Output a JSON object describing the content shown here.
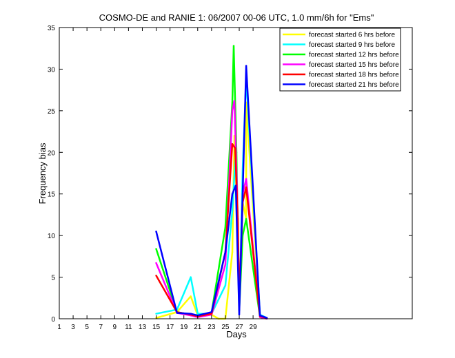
{
  "chart_data": {
    "type": "line",
    "title": "COSMO-DE and RANIE 1: 06/2007 00-06 UTC, 1.0 mm/6h for \"Ems\"",
    "xlabel": "Days",
    "ylabel": "Frequency bias",
    "xlim": [
      1,
      52
    ],
    "ylim": [
      0,
      35
    ],
    "xticks": [
      1,
      3,
      5,
      7,
      9,
      11,
      13,
      15,
      17,
      19,
      21,
      23,
      25,
      27,
      29
    ],
    "yticks": [
      0,
      5,
      10,
      15,
      20,
      25,
      30,
      35
    ],
    "grid": false,
    "legend_position": "top-right",
    "series": [
      {
        "name": "forecast started 6 hrs before",
        "color": "#ffff00",
        "points": [
          [
            15,
            0.1
          ],
          [
            18,
            0.8
          ],
          [
            20,
            2.7
          ],
          [
            21,
            0.4
          ],
          [
            23,
            0.5
          ],
          [
            24,
            0.0
          ],
          [
            25,
            0.0
          ],
          [
            26,
            8.0
          ],
          [
            26.3,
            22.0
          ],
          [
            26.6,
            15.0
          ],
          [
            27,
            1.5
          ],
          [
            27.5,
            14.0
          ],
          [
            28,
            12.0
          ],
          [
            28,
            26.0
          ],
          [
            30,
            0.3
          ],
          [
            30.5,
            0.1
          ]
        ]
      },
      {
        "name": "forecast started 9 hrs before",
        "color": "#00ffff",
        "points": [
          [
            15,
            0.6
          ],
          [
            18,
            1.1
          ],
          [
            20,
            5.0
          ],
          [
            21,
            0.6
          ],
          [
            23,
            0.6
          ],
          [
            25,
            4.0
          ],
          [
            26,
            13.0
          ],
          [
            26.5,
            20.0
          ],
          [
            27,
            1.0
          ],
          [
            27.5,
            18.0
          ],
          [
            28,
            29.0
          ],
          [
            30,
            0.5
          ],
          [
            31,
            0.1
          ]
        ]
      },
      {
        "name": "forecast started 12 hrs before",
        "color": "#00ff00",
        "points": [
          [
            15,
            8.4
          ],
          [
            18,
            0.8
          ],
          [
            20,
            0.5
          ],
          [
            21,
            0.3
          ],
          [
            23,
            0.7
          ],
          [
            25,
            11.0
          ],
          [
            26,
            26.0
          ],
          [
            26.2,
            32.8
          ],
          [
            26.6,
            20.0
          ],
          [
            27,
            1.0
          ],
          [
            27.5,
            10.0
          ],
          [
            28,
            12.0
          ],
          [
            30,
            0.2
          ],
          [
            31,
            0.0
          ]
        ]
      },
      {
        "name": "forecast started 15 hrs before",
        "color": "#ff00ff",
        "points": [
          [
            15,
            6.7
          ],
          [
            18,
            0.7
          ],
          [
            20,
            0.4
          ],
          [
            21,
            0.2
          ],
          [
            23,
            0.5
          ],
          [
            25,
            6.5
          ],
          [
            26,
            25.0
          ],
          [
            26.3,
            26.2
          ],
          [
            26.7,
            15.0
          ],
          [
            27,
            1.5
          ],
          [
            27.5,
            15.0
          ],
          [
            28,
            16.8
          ],
          [
            30,
            0.2
          ],
          [
            31,
            0.0
          ]
        ]
      },
      {
        "name": "forecast started 18 hrs before",
        "color": "#ff0000",
        "points": [
          [
            15,
            5.2
          ],
          [
            18,
            0.8
          ],
          [
            20,
            0.5
          ],
          [
            21,
            0.3
          ],
          [
            23,
            0.6
          ],
          [
            25,
            8.0
          ],
          [
            26,
            21.0
          ],
          [
            26.4,
            20.5
          ],
          [
            26.8,
            12.0
          ],
          [
            27,
            2.0
          ],
          [
            27.5,
            14.0
          ],
          [
            28,
            15.8
          ],
          [
            30,
            0.3
          ],
          [
            31,
            0.1
          ]
        ]
      },
      {
        "name": "forecast started 21 hrs before",
        "color": "#0000ff",
        "points": [
          [
            15,
            10.5
          ],
          [
            18,
            0.7
          ],
          [
            20,
            0.6
          ],
          [
            21,
            0.4
          ],
          [
            23,
            0.8
          ],
          [
            25,
            8.0
          ],
          [
            26,
            15.0
          ],
          [
            26.5,
            16.0
          ],
          [
            27,
            0.5
          ],
          [
            27.5,
            15.0
          ],
          [
            28,
            30.4
          ],
          [
            30,
            0.4
          ],
          [
            31,
            0.1
          ]
        ]
      }
    ]
  }
}
